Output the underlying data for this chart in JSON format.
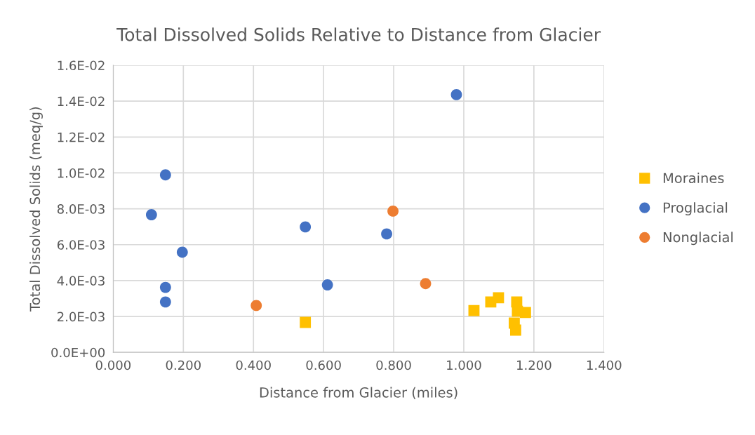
{
  "chart_data": {
    "type": "scatter",
    "title": "Total Dissolved Solids Relative to Distance from Glacier",
    "xlabel": "Distance from Glacier (miles)",
    "ylabel": "Total Dissolved Solids (meq/g)",
    "series": [
      {
        "name": "Moraines",
        "color": "#ffc000",
        "marker": "square",
        "x": [
          0.548,
          1.029,
          1.077,
          1.099,
          1.151,
          1.153,
          1.176,
          1.144,
          1.148
        ],
        "values": [
          0.00167,
          0.00233,
          0.00281,
          0.00304,
          0.00281,
          0.00229,
          0.00222,
          0.00163,
          0.00124
        ]
      },
      {
        "name": "Proglacial",
        "color": "#4472c4",
        "marker": "circle",
        "x": [
          0.149,
          0.109,
          0.197,
          0.149,
          0.149,
          0.548,
          0.611,
          0.78,
          0.979
        ],
        "values": [
          0.00989,
          0.00767,
          0.00558,
          0.00362,
          0.00281,
          0.00699,
          0.00376,
          0.0066,
          0.01436
        ]
      },
      {
        "name": "Nonglacial",
        "color": "#ed7d31",
        "marker": "circle",
        "x": [
          0.408,
          0.798,
          0.891
        ],
        "values": [
          0.00261,
          0.00787,
          0.00383
        ]
      }
    ],
    "xlim": [
      0,
      1.4
    ],
    "xticks": [
      {
        "value": 0,
        "label": "0.000"
      },
      {
        "value": 0.2,
        "label": "0.200"
      },
      {
        "value": 0.4,
        "label": "0.400"
      },
      {
        "value": 0.6,
        "label": "0.600"
      },
      {
        "value": 0.8,
        "label": "0.800"
      },
      {
        "value": 1.0,
        "label": "1.000"
      },
      {
        "value": 1.2,
        "label": "1.200"
      },
      {
        "value": 1.4,
        "label": "1.400"
      }
    ],
    "ylim": [
      0,
      0.016
    ],
    "yticks": [
      {
        "value": 0,
        "label": "0.0E+00"
      },
      {
        "value": 0.002,
        "label": "2.0E-03"
      },
      {
        "value": 0.004,
        "label": "4.0E-03"
      },
      {
        "value": 0.006,
        "label": "6.0E-03"
      },
      {
        "value": 0.008,
        "label": "8.0E-03"
      },
      {
        "value": 0.01,
        "label": "1.0E-02"
      },
      {
        "value": 0.012,
        "label": "1.2E-02"
      },
      {
        "value": 0.014,
        "label": "1.4E-02"
      },
      {
        "value": 0.016,
        "label": "1.6E-02"
      }
    ],
    "grid": true,
    "legend": "right"
  }
}
